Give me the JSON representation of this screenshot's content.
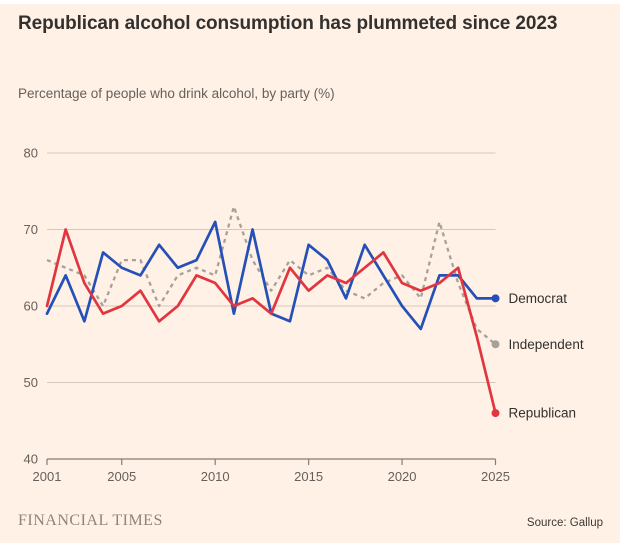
{
  "title": "Republican alcohol consumption has plummeted since 2023",
  "subtitle": "Percentage of people who drink alcohol, by party (%)",
  "footer": {
    "brand": "FINANCIAL TIMES",
    "source": "Source: Gallup"
  },
  "colors": {
    "background": "#fff1e5",
    "democrat": "#2450b8",
    "republican": "#e1353f",
    "independent": "#a8a199",
    "gridline": "#d5c8ba",
    "axis": "#857c72",
    "tick_text": "#66605c",
    "title_text": "#33302e"
  },
  "chart_data": {
    "type": "line",
    "x": [
      2001,
      2002,
      2003,
      2004,
      2005,
      2006,
      2007,
      2008,
      2009,
      2010,
      2011,
      2012,
      2013,
      2014,
      2015,
      2016,
      2017,
      2018,
      2019,
      2020,
      2021,
      2022,
      2023,
      2024,
      2025
    ],
    "series": [
      {
        "name": "Independent",
        "color_key": "independent",
        "dash": true,
        "values": [
          66,
          65,
          64,
          60,
          66,
          66,
          60,
          64,
          65,
          64,
          73,
          66,
          62,
          66,
          64,
          65,
          62,
          61,
          63,
          64,
          61,
          71,
          63,
          57,
          55
        ]
      },
      {
        "name": "Democrat",
        "color_key": "democrat",
        "dash": false,
        "values": [
          59,
          64,
          58,
          67,
          65,
          64,
          68,
          65,
          66,
          71,
          59,
          70,
          59,
          58,
          68,
          66,
          61,
          68,
          64,
          60,
          57,
          64,
          64,
          61,
          61
        ]
      },
      {
        "name": "Republican",
        "color_key": "republican",
        "dash": false,
        "values": [
          60,
          70,
          63,
          59,
          60,
          62,
          58,
          60,
          64,
          63,
          60,
          61,
          59,
          65,
          62,
          64,
          63,
          65,
          67,
          63,
          62,
          63,
          65,
          56,
          46
        ]
      }
    ],
    "title": "Republican alcohol consumption has plummeted since 2023",
    "xlabel": "",
    "ylabel": "",
    "xlim": [
      2001,
      2025
    ],
    "ylim": [
      40,
      80
    ],
    "xticks": [
      2001,
      2005,
      2010,
      2015,
      2020,
      2025
    ],
    "yticks": [
      40,
      50,
      60,
      70,
      80
    ],
    "grid": true,
    "legend_position": "right-end-labels"
  }
}
